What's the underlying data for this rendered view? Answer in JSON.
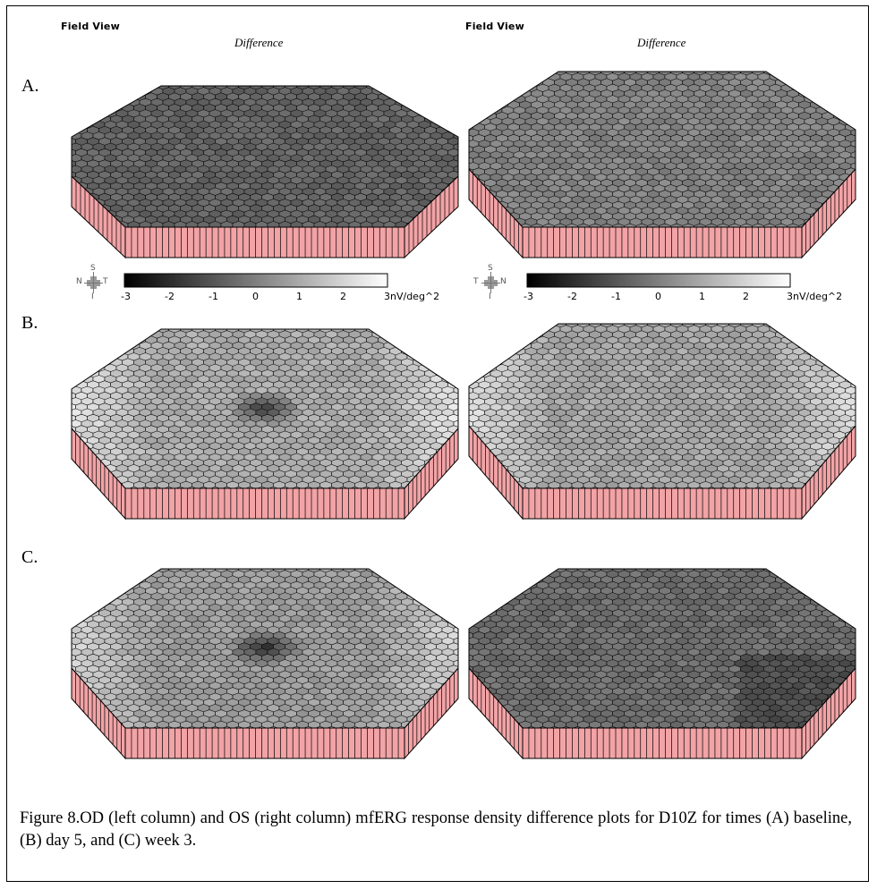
{
  "headers": [
    {
      "field_view": "Field View",
      "difference": "Difference"
    },
    {
      "field_view": "Field View",
      "difference": "Difference"
    }
  ],
  "row_labels": [
    "A.",
    "B.",
    "C."
  ],
  "colorbar": {
    "ticks": [
      "-3",
      "-2",
      "-1",
      "0",
      "1",
      "2",
      "3nV/deg^2"
    ],
    "range": [
      -3,
      3
    ],
    "gradient": [
      "#000000",
      "#ffffff"
    ]
  },
  "compass": [
    {
      "top": "S",
      "bottom": "I",
      "left": "N",
      "right": "T"
    },
    {
      "top": "S",
      "bottom": "I",
      "left": "T",
      "right": "N"
    }
  ],
  "colors": {
    "side_wall": "#f2a3a6",
    "outline": "#000000"
  },
  "plots": [
    {
      "row": "A",
      "eye": "OD",
      "tone": 0.3
    },
    {
      "row": "A",
      "eye": "OS",
      "tone": 0.45
    },
    {
      "row": "B",
      "eye": "OD",
      "tone": 0.65
    },
    {
      "row": "B",
      "eye": "OS",
      "tone": 0.62
    },
    {
      "row": "C",
      "eye": "OD",
      "tone": 0.58
    },
    {
      "row": "C",
      "eye": "OS",
      "tone": 0.35
    }
  ],
  "caption": "Figure 8.OD (left column) and OS (right column) mfERG response density difference plots for D10Z for times (A) baseline, (B) day 5, and (C) week 3."
}
